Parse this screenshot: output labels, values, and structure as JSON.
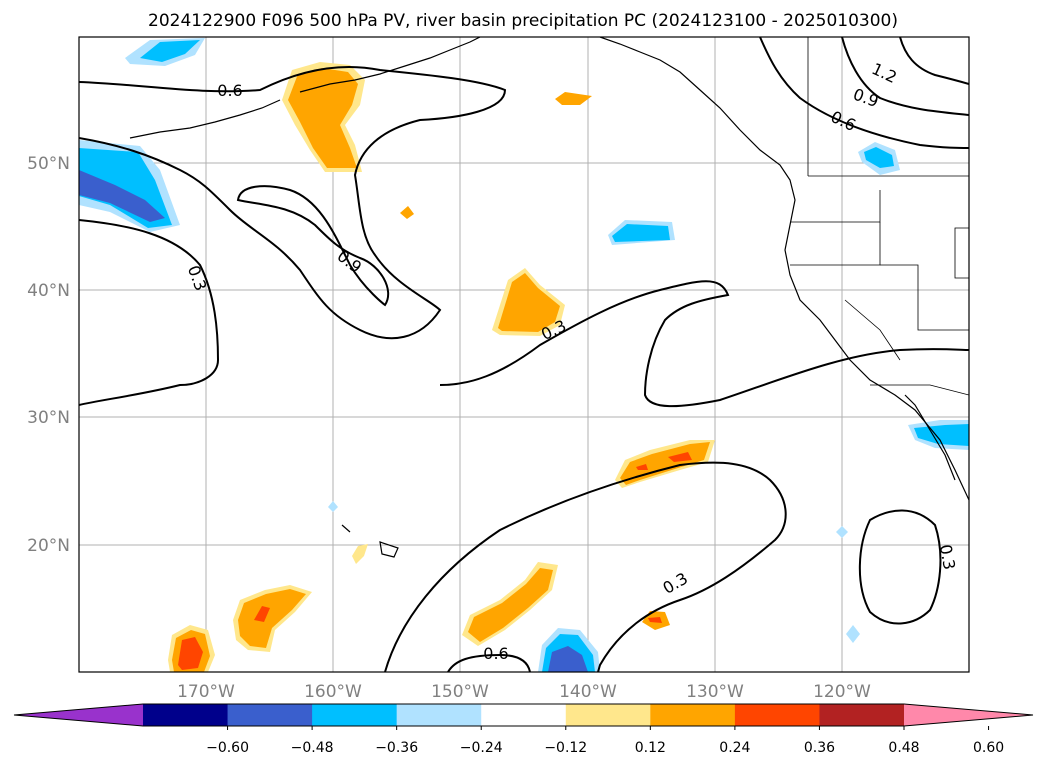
{
  "title": "2024122900 F096 500 hPa PV, river basin precipitation PC (2024123100 - 2025010300)",
  "lat_ticks": [
    "50°N",
    "40°N",
    "30°N",
    "20°N"
  ],
  "lon_ticks": [
    "170°W",
    "160°W",
    "150°W",
    "140°W",
    "130°W",
    "120°W"
  ],
  "contour_labels": [
    "0.6",
    "0.9",
    "0.3",
    "0.3",
    "0.6",
    "0.3",
    "1.2",
    "0.9",
    "0.6",
    "0.3"
  ],
  "colorbar": {
    "ticks": [
      "−0.60",
      "−0.48",
      "−0.36",
      "−0.24",
      "−0.12",
      "0.12",
      "0.24",
      "0.36",
      "0.48",
      "0.60"
    ],
    "colors": [
      "#9932cc",
      "#00008b",
      "#3a5fcd",
      "#00bfff",
      "#b0e2ff",
      "#ffffff",
      "#ffe78c",
      "#ffa500",
      "#ff4500",
      "#b22222",
      "#ff88aa"
    ]
  },
  "map": {
    "lon_range": [
      -180,
      -110
    ],
    "lat_range": [
      10,
      60
    ],
    "projection": "plate-carree",
    "shading_colors": {
      "neg_light": "#b0e2ff",
      "neg_mid": "#00bfff",
      "neg_dark": "#3a5fcd",
      "pos_light": "#ffe78c",
      "pos_mid": "#ffa500",
      "pos_dark": "#ff4500"
    }
  }
}
